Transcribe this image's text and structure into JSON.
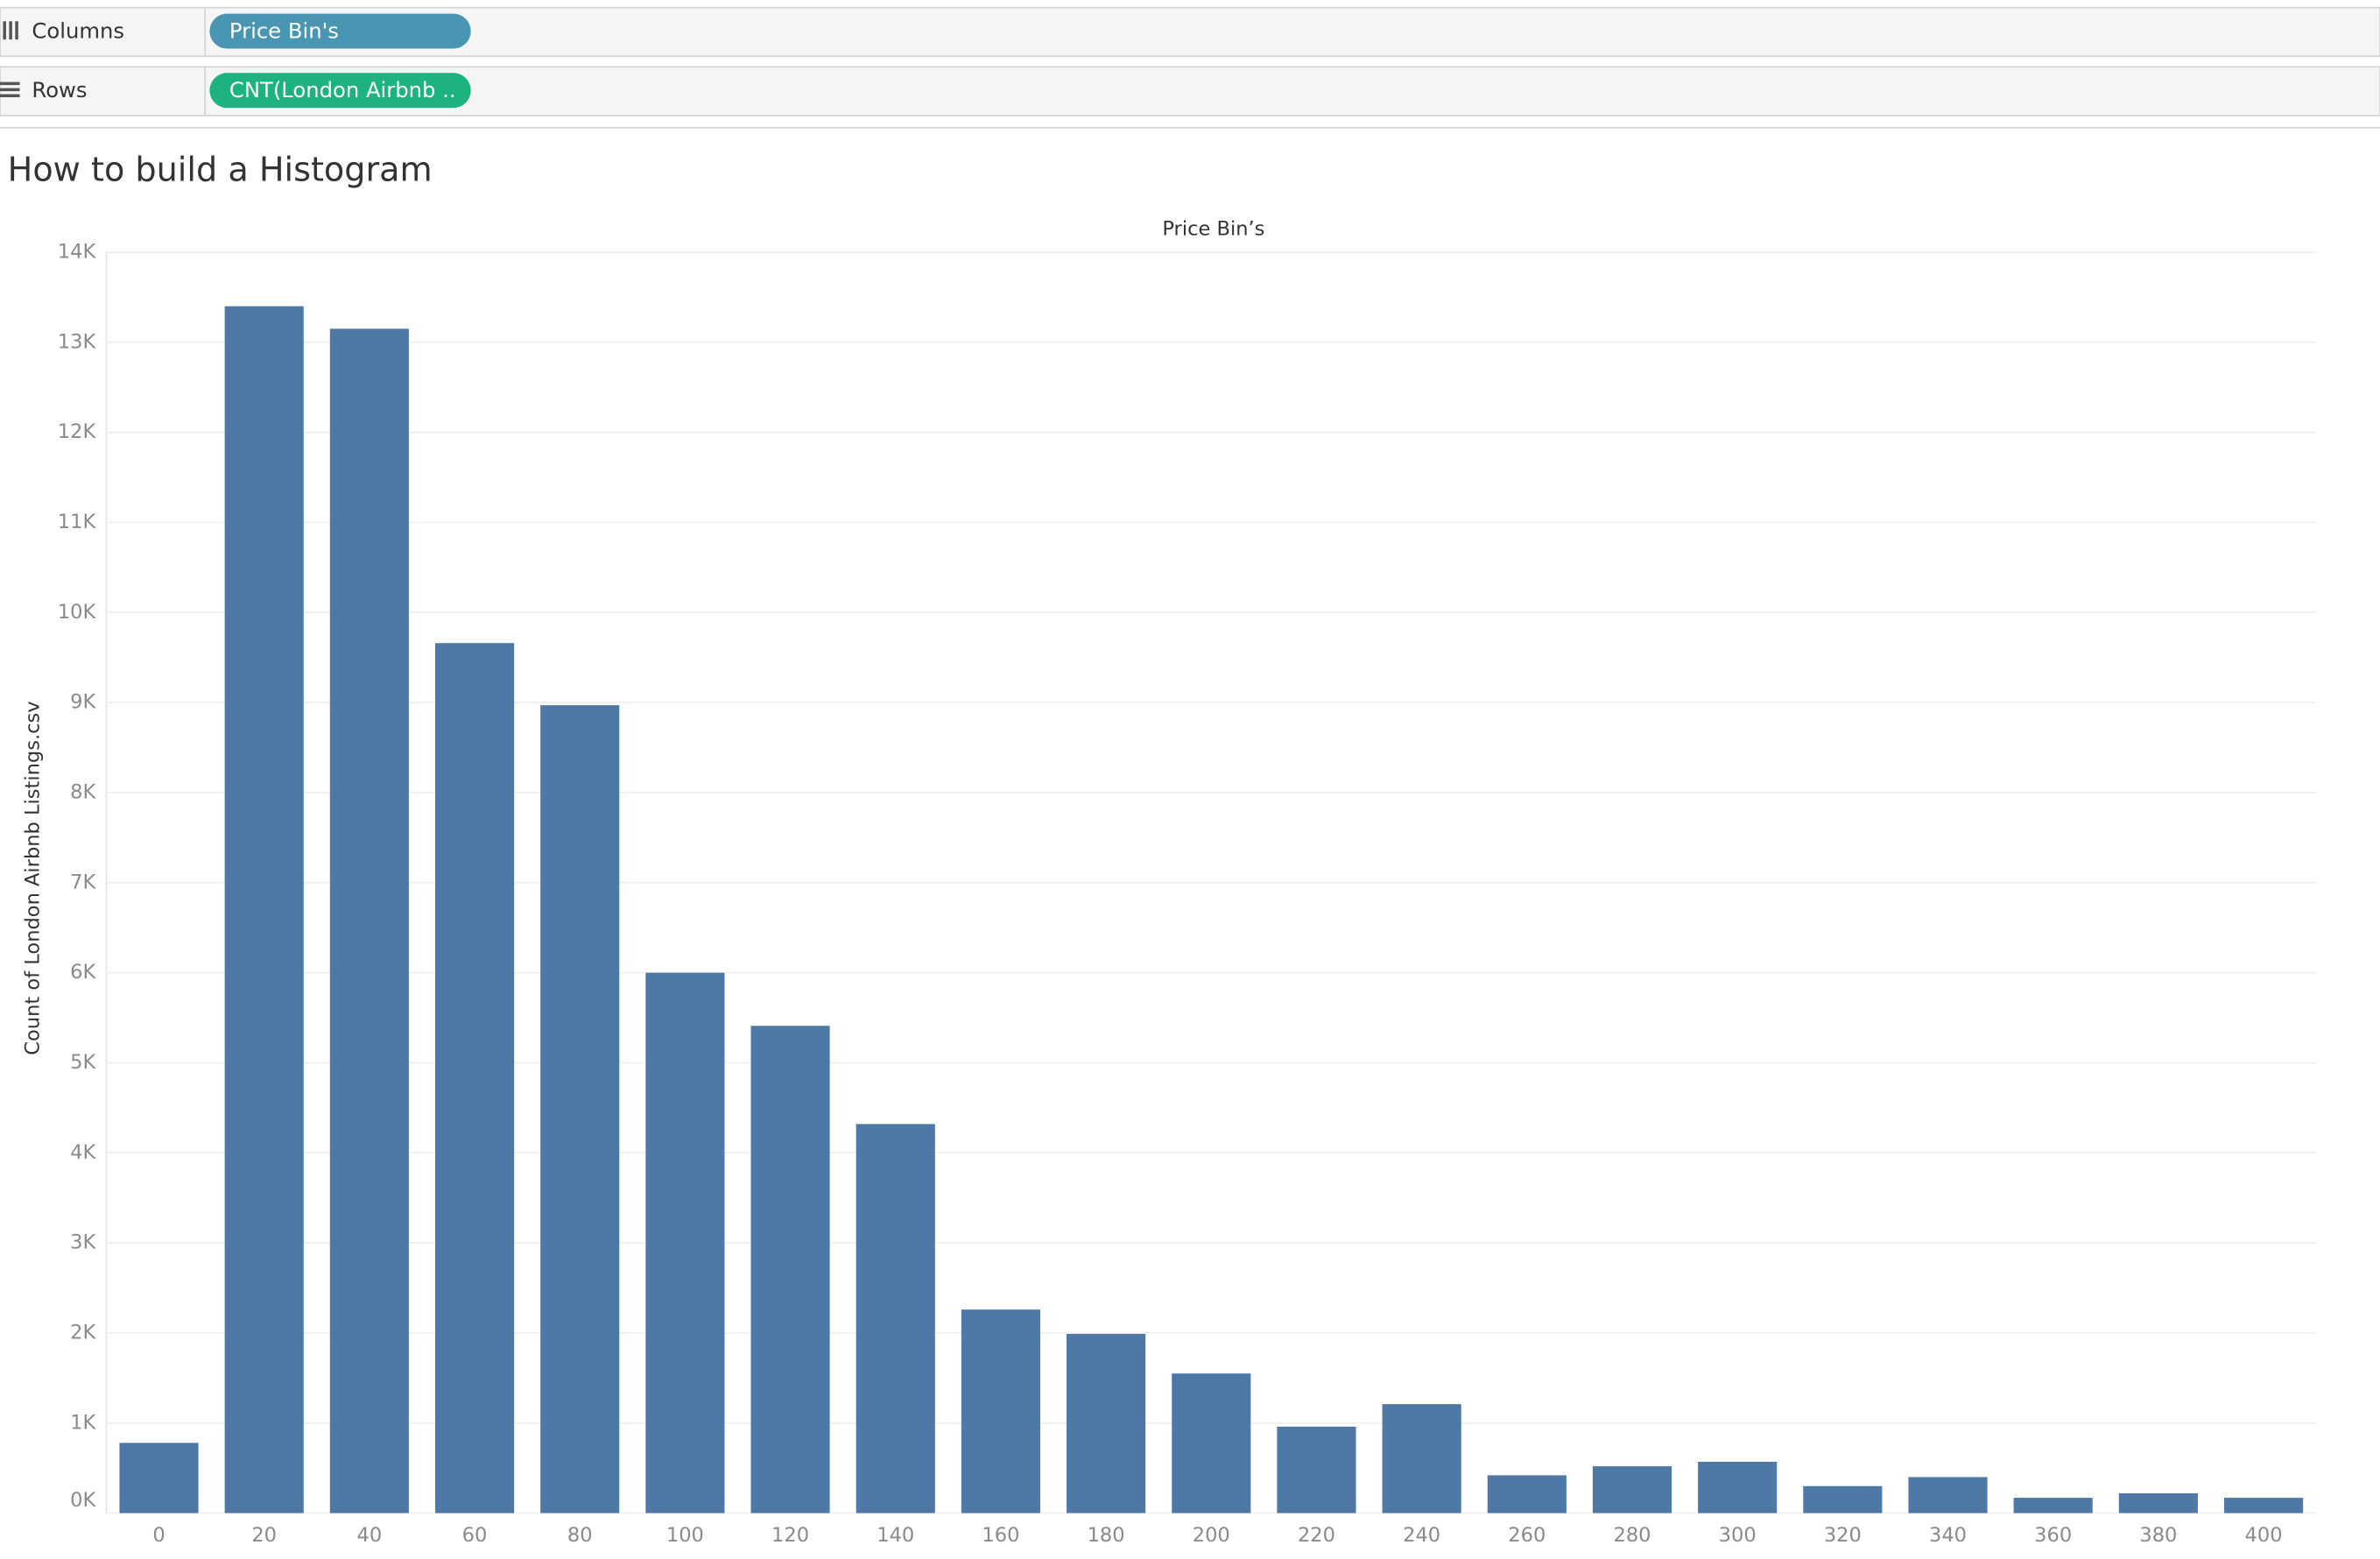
{
  "shelves": {
    "columns": {
      "label": "Columns",
      "pill": "Price Bin's"
    },
    "rows": {
      "label": "Rows",
      "pill": "CNT(London Airbnb .."
    }
  },
  "chart_data": {
    "type": "bar",
    "title": "How to build a Histogram",
    "subtitle": "Price Bin’s",
    "y_label": "Count of London Airbnb Listings.csv",
    "categories": [
      "0",
      "20",
      "40",
      "60",
      "80",
      "100",
      "120",
      "140",
      "160",
      "180",
      "200",
      "220",
      "240",
      "260",
      "280",
      "300",
      "320",
      "340",
      "360",
      "380",
      "400"
    ],
    "values": [
      780,
      13400,
      13150,
      9660,
      8970,
      6000,
      5410,
      4320,
      2260,
      1990,
      1550,
      960,
      1210,
      420,
      520,
      570,
      300,
      400,
      170,
      220,
      170
    ],
    "color": "#4e79a7",
    "ylim": [
      0,
      14000
    ],
    "yticks": [
      {
        "value": 0,
        "label": "0K"
      },
      {
        "value": 1000,
        "label": "1K"
      },
      {
        "value": 2000,
        "label": "2K"
      },
      {
        "value": 3000,
        "label": "3K"
      },
      {
        "value": 4000,
        "label": "4K"
      },
      {
        "value": 5000,
        "label": "5K"
      },
      {
        "value": 6000,
        "label": "6K"
      },
      {
        "value": 7000,
        "label": "7K"
      },
      {
        "value": 8000,
        "label": "8K"
      },
      {
        "value": 9000,
        "label": "9K"
      },
      {
        "value": 10000,
        "label": "10K"
      },
      {
        "value": 11000,
        "label": "11K"
      },
      {
        "value": 12000,
        "label": "12K"
      },
      {
        "value": 13000,
        "label": "13K"
      },
      {
        "value": 14000,
        "label": "14K"
      }
    ],
    "grid": true
  }
}
